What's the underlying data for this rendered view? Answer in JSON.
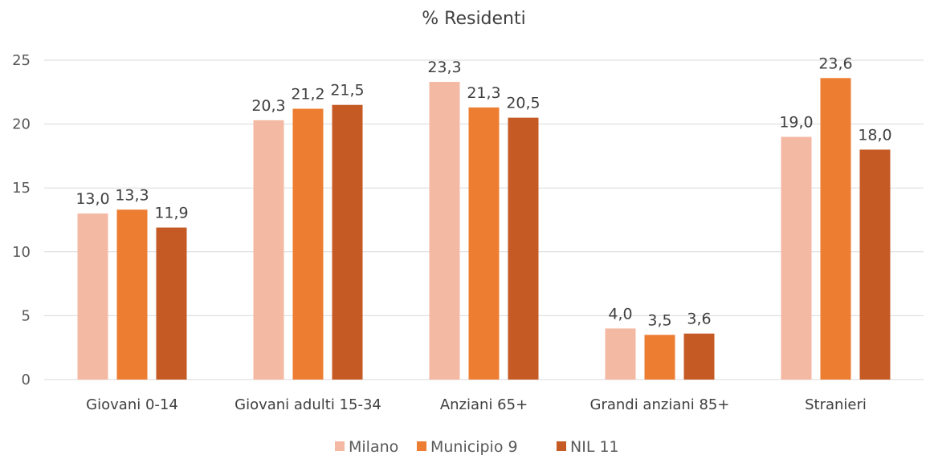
{
  "chart_data": {
    "type": "bar",
    "title": "% Residenti",
    "categories": [
      "Giovani 0-14",
      "Giovani adulti 15-34",
      "Anziani 65+",
      "Grandi anziani 85+",
      "Stranieri"
    ],
    "series": [
      {
        "name": "Milano",
        "color": "#f4b9a3",
        "values": [
          13.0,
          20.3,
          23.3,
          4.0,
          19.0
        ],
        "labels": [
          "13,0",
          "20,3",
          "23,3",
          "4,0",
          "19,0"
        ]
      },
      {
        "name": "Municipio 9",
        "color": "#ed7d31",
        "values": [
          13.3,
          21.2,
          21.3,
          3.5,
          23.6
        ],
        "labels": [
          "13,3",
          "21,2",
          "21,3",
          "3,5",
          "23,6"
        ]
      },
      {
        "name": "NIL 11",
        "color": "#c55a24",
        "values": [
          11.9,
          21.5,
          20.5,
          3.6,
          18.0
        ],
        "labels": [
          "11,9",
          "21,5",
          "20,5",
          "3,6",
          "18,0"
        ]
      }
    ],
    "yticks": [
      "0",
      "5",
      "10",
      "15",
      "20",
      "25"
    ],
    "ylim": [
      0,
      25
    ],
    "grid": true,
    "legend": "bottom"
  }
}
